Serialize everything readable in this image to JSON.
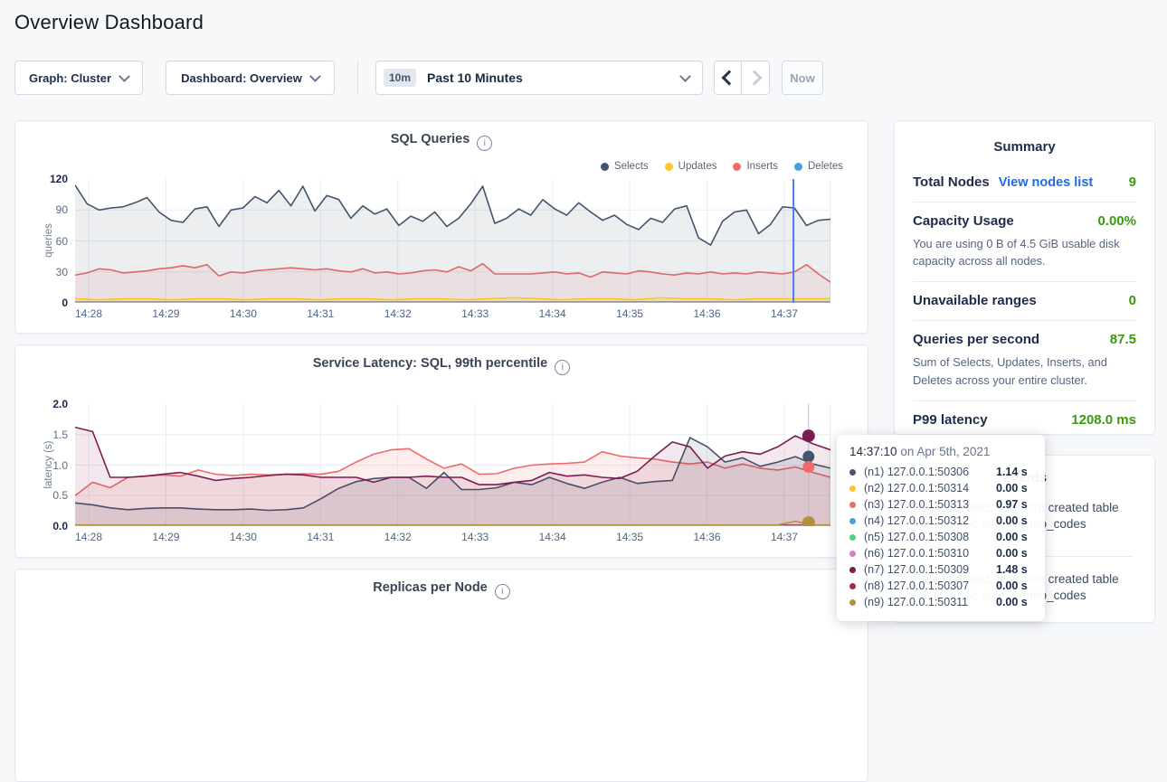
{
  "page": {
    "title": "Overview Dashboard"
  },
  "controls": {
    "graph_dropdown": "Graph: Cluster",
    "dashboard_dropdown": "Dashboard: Overview",
    "time_badge": "10m",
    "time_label": "Past 10 Minutes",
    "now_button": "Now"
  },
  "summary": {
    "title": "Summary",
    "items": [
      {
        "label": "Total Nodes",
        "link": "View nodes list",
        "value": "9"
      },
      {
        "label": "Capacity Usage",
        "value": "0.00%",
        "subtext": "You are using 0 B of 4.5 GiB usable disk capacity across all nodes."
      },
      {
        "label": "Unavailable ranges",
        "value": "0"
      },
      {
        "label": "Queries per second",
        "value": "87.5",
        "subtext": "Sum of Selects, Updates, Inserts, and Deletes across your entire cluster."
      },
      {
        "label": "P99 latency",
        "value": "1208.0 ms"
      }
    ]
  },
  "events": {
    "title": "Events",
    "items": [
      {
        "line1": "Table created: user root created table",
        "line2": "movr.public.user_promo_codes"
      },
      {
        "line1": "Table created: user root created table",
        "line2": "movr.public.user_promo_codes"
      }
    ]
  },
  "tooltip": {
    "time": "14:37:10",
    "date": "on Apr 5th, 2021",
    "rows": [
      {
        "node": "(n1) 127.0.0.1:50306",
        "value": "1.14 s",
        "color": "#44546e"
      },
      {
        "node": "(n2) 127.0.0.1:50314",
        "value": "0.00 s",
        "color": "#ffc529"
      },
      {
        "node": "(n3) 127.0.0.1:50313",
        "value": "0.97 s",
        "color": "#ef6a6a"
      },
      {
        "node": "(n4) 127.0.0.1:50312",
        "value": "0.00 s",
        "color": "#4d9fdb"
      },
      {
        "node": "(n5) 127.0.0.1:50308",
        "value": "0.00 s",
        "color": "#4cd389"
      },
      {
        "node": "(n6) 127.0.0.1:50310",
        "value": "0.00 s",
        "color": "#d77ec2"
      },
      {
        "node": "(n7) 127.0.0.1:50309",
        "value": "1.48 s",
        "color": "#7c1d51"
      },
      {
        "node": "(n8) 127.0.0.1:50307",
        "value": "0.00 s",
        "color": "#9e2e46"
      },
      {
        "node": "(n9) 127.0.0.1:50311",
        "value": "0.00 s",
        "color": "#b3903e"
      }
    ]
  },
  "chart_data": [
    {
      "type": "line",
      "title": "SQL Queries",
      "ylabel": "queries",
      "ylim": [
        0,
        120
      ],
      "y_tick_labels": [
        "120",
        "90",
        "60",
        "30",
        "0"
      ],
      "x_ticks": [
        "14:28",
        "14:29",
        "14:30",
        "14:31",
        "14:32",
        "14:33",
        "14:34",
        "14:35",
        "14:36",
        "14:37"
      ],
      "grid": true,
      "legend_position": "top-right",
      "crosshair_time": "14:37:10",
      "series": [
        {
          "name": "Selects",
          "color": "#44546e",
          "fill": "rgba(68,84,110,0.10)",
          "z": 2,
          "values": [
            114,
            96,
            90,
            92,
            93,
            97,
            102,
            88,
            80,
            78,
            91,
            93,
            74,
            90,
            92,
            103,
            97,
            109,
            94,
            113,
            89,
            104,
            100,
            82,
            94,
            86,
            91,
            75,
            84,
            79,
            88,
            74,
            82,
            96,
            113,
            77,
            82,
            91,
            85,
            100,
            91,
            85,
            97,
            88,
            80,
            85,
            76,
            71,
            82,
            78,
            91,
            94,
            63,
            56,
            79,
            88,
            90,
            67,
            76,
            93,
            92,
            75,
            80,
            81
          ]
        },
        {
          "name": "Updates",
          "color": "#ffc529",
          "fill": "rgba(255,197,41,0.18)",
          "z": 3,
          "values": [
            4,
            3,
            4,
            4,
            3,
            4,
            4,
            3,
            4,
            4,
            3,
            4,
            4,
            3,
            4,
            4,
            3,
            4,
            5,
            4,
            3,
            4,
            4,
            3,
            5,
            4,
            4,
            3,
            4,
            4,
            4,
            4
          ]
        },
        {
          "name": "Inserts",
          "color": "#ef6a6a",
          "fill": "rgba(239,106,106,0.10)",
          "z": 1,
          "values": [
            27,
            29,
            33,
            32,
            29,
            30,
            31,
            33,
            34,
            36,
            34,
            37,
            26,
            30,
            29,
            31,
            32,
            33,
            34,
            33,
            32,
            33,
            31,
            30,
            33,
            29,
            30,
            28,
            29,
            31,
            32,
            30,
            35,
            31,
            38,
            28,
            28,
            28,
            28,
            29,
            30,
            28,
            29,
            25,
            30,
            29,
            28,
            31,
            30,
            28,
            27,
            29,
            28,
            30,
            28,
            29,
            28,
            30,
            29,
            28,
            30,
            37,
            28,
            20
          ]
        },
        {
          "name": "Deletes",
          "color": "#4d9fdb",
          "fill": null,
          "z": 4,
          "values": [
            1,
            1
          ]
        }
      ]
    },
    {
      "type": "line",
      "title": "Service Latency: SQL, 99th percentile",
      "ylabel": "latency (s)",
      "ylim": [
        0,
        2.0
      ],
      "y_tick_labels": [
        "2.0",
        "1.5",
        "1.0",
        "0.5",
        "0.0"
      ],
      "x_ticks": [
        "14:28",
        "14:29",
        "14:30",
        "14:31",
        "14:32",
        "14:33",
        "14:34",
        "14:35",
        "14:36",
        "14:37"
      ],
      "grid": true,
      "crosshair_time": "14:37:10",
      "hover_values": [
        {
          "name": "(n7) 127.0.0.1:50309",
          "value": 1.48
        },
        {
          "name": "(n1) 127.0.0.1:50306",
          "value": 1.14
        },
        {
          "name": "(n3) 127.0.0.1:50313",
          "value": 0.97
        },
        {
          "name": "(n9) 127.0.0.1:50311",
          "value": 0.0
        }
      ],
      "series": [
        {
          "name": "(n2) 127.0.0.1:50314",
          "color": "#ffc529",
          "fill": null,
          "z": 1,
          "values": [
            0.015,
            0.015
          ]
        },
        {
          "name": "(n4) 127.0.0.1:50312",
          "color": "#4d9fdb",
          "fill": null,
          "z": 1,
          "values": [
            0.015,
            0.015
          ]
        },
        {
          "name": "(n5) 127.0.0.1:50308",
          "color": "#4cd389",
          "fill": null,
          "z": 1,
          "values": [
            0.015,
            0.015
          ]
        },
        {
          "name": "(n6) 127.0.0.1:50310",
          "color": "#d77ec2",
          "fill": null,
          "z": 1,
          "values": [
            0.015,
            0.015
          ]
        },
        {
          "name": "(n8) 127.0.0.1:50307",
          "color": "#9e2e46",
          "fill": null,
          "z": 1,
          "values": [
            0.015,
            0.015
          ]
        },
        {
          "name": "(n3) 127.0.0.1:50313",
          "color": "#ef6a6a",
          "fill": "rgba(239,106,106,0.12)",
          "z": 2,
          "values": [
            0.5,
            0.72,
            0.63,
            0.8,
            0.82,
            0.84,
            0.82,
            0.92,
            0.85,
            0.83,
            0.85,
            0.84,
            0.85,
            0.86,
            0.85,
            0.9,
            1.05,
            1.18,
            1.25,
            1.27,
            1.1,
            0.95,
            1.02,
            0.85,
            0.86,
            0.95,
            1.0,
            1.02,
            1.03,
            1.05,
            1.22,
            1.15,
            1.12,
            1.1,
            1.05,
            1.02,
            1.05,
            0.95,
            1.02,
            0.95,
            0.92,
            0.97,
            0.88,
            0.8
          ]
        },
        {
          "name": "(n1) 127.0.0.1:50306",
          "color": "#44546e",
          "fill": "rgba(68,84,110,0.12)",
          "z": 3,
          "values": [
            0.38,
            0.35,
            0.3,
            0.27,
            0.29,
            0.3,
            0.3,
            0.28,
            0.27,
            0.27,
            0.28,
            0.26,
            0.27,
            0.3,
            0.45,
            0.62,
            0.73,
            0.78,
            0.8,
            0.8,
            0.62,
            0.88,
            0.6,
            0.6,
            0.63,
            0.72,
            0.68,
            0.8,
            0.7,
            0.62,
            0.72,
            0.8,
            0.7,
            0.73,
            0.75,
            1.45,
            1.3,
            1.05,
            1.12,
            0.98,
            1.05,
            1.14,
            1.02,
            0.95
          ]
        },
        {
          "name": "(n7) 127.0.0.1:50309",
          "color": "#7c1d51",
          "fill": "rgba(124,29,81,0.10)",
          "z": 4,
          "values": [
            1.62,
            1.55,
            0.8,
            0.8,
            0.82,
            0.85,
            0.88,
            0.82,
            0.75,
            0.78,
            0.8,
            0.83,
            0.85,
            0.84,
            0.8,
            0.8,
            0.8,
            0.72,
            0.8,
            0.8,
            0.82,
            0.8,
            0.8,
            0.68,
            0.68,
            0.72,
            0.75,
            0.88,
            0.82,
            0.84,
            0.8,
            0.78,
            0.9,
            1.15,
            1.38,
            1.3,
            0.95,
            1.15,
            1.22,
            1.18,
            1.3,
            1.48,
            1.35,
            1.25
          ]
        },
        {
          "name": "(n9) 127.0.0.1:50311",
          "color": "#b3903e",
          "fill": null,
          "z": 5,
          "values": [
            0.02,
            0.02,
            0.02,
            0.02,
            0.02,
            0.02,
            0.02,
            0.02,
            0.02,
            0.02,
            0.02,
            0.02,
            0.02,
            0.02,
            0.02,
            0.02,
            0.02,
            0.02,
            0.02,
            0.02,
            0.02,
            0.02,
            0.02,
            0.02,
            0.02,
            0.02,
            0.02,
            0.02,
            0.02,
            0.02,
            0.02,
            0.02,
            0.02,
            0.02,
            0.02,
            0.02,
            0.02,
            0.02,
            0.02,
            0.02,
            0.02,
            0.08,
            0.02,
            0.02
          ]
        }
      ]
    },
    {
      "type": "line",
      "title": "Replicas per Node"
    }
  ]
}
